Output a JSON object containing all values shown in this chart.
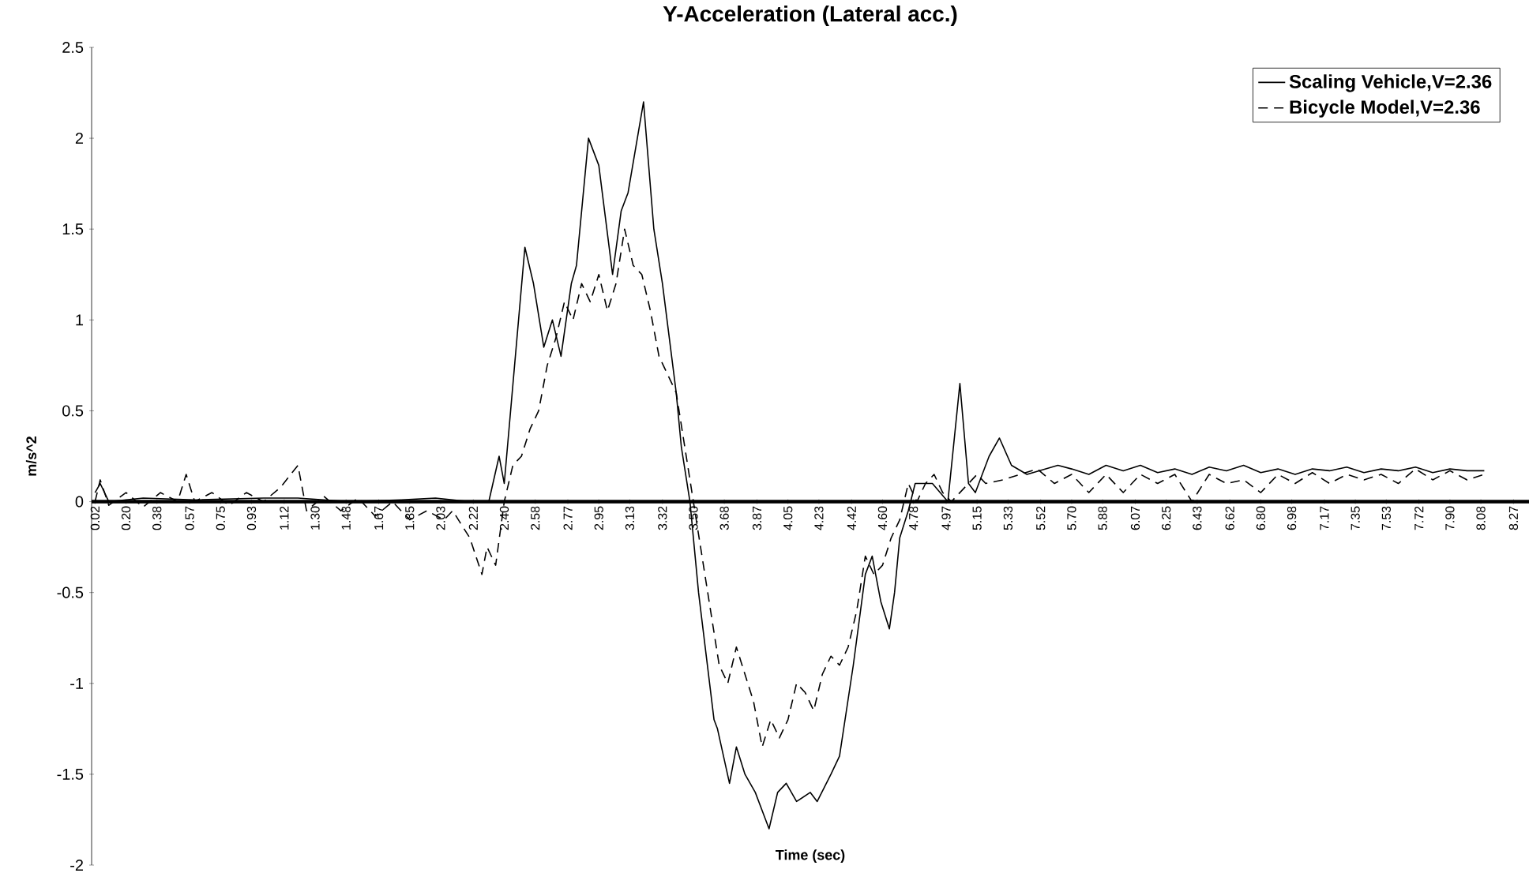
{
  "chart_data": {
    "type": "line",
    "title": "Y-Acceleration (Lateral acc.)",
    "xlabel": "Time (sec)",
    "ylabel": "m/s^2",
    "xlim": [
      0,
      8.36
    ],
    "ylim": [
      -2,
      2.5
    ],
    "yticks": [
      -2,
      -1.5,
      -1,
      -0.5,
      0,
      0.5,
      1,
      1.5,
      2,
      2.5
    ],
    "xticks": [
      {
        "value": 0.02,
        "label": "0.02"
      },
      {
        "value": 0.2,
        "label": "0.20"
      },
      {
        "value": 0.38,
        "label": "0.38"
      },
      {
        "value": 0.57,
        "label": "0.57"
      },
      {
        "value": 0.75,
        "label": "0.75"
      },
      {
        "value": 0.93,
        "label": "0.93"
      },
      {
        "value": 1.12,
        "label": "1.12"
      },
      {
        "value": 1.3,
        "label": "1.30"
      },
      {
        "value": 1.48,
        "label": "1.48"
      },
      {
        "value": 1.67,
        "label": "1.67"
      },
      {
        "value": 1.85,
        "label": "1.85"
      },
      {
        "value": 2.03,
        "label": "2.03"
      },
      {
        "value": 2.22,
        "label": "2.22"
      },
      {
        "value": 2.4,
        "label": "2.40"
      },
      {
        "value": 2.58,
        "label": "2.58"
      },
      {
        "value": 2.77,
        "label": "2.77"
      },
      {
        "value": 2.95,
        "label": "2.95"
      },
      {
        "value": 3.13,
        "label": "3.13"
      },
      {
        "value": 3.32,
        "label": "3.32"
      },
      {
        "value": 3.5,
        "label": "3.50"
      },
      {
        "value": 3.68,
        "label": "3.68"
      },
      {
        "value": 3.87,
        "label": "3.87"
      },
      {
        "value": 4.05,
        "label": "4.05"
      },
      {
        "value": 4.23,
        "label": "4.23"
      },
      {
        "value": 4.42,
        "label": "4.42"
      },
      {
        "value": 4.6,
        "label": "4.60"
      },
      {
        "value": 4.78,
        "label": "4.78"
      },
      {
        "value": 4.97,
        "label": "4.97"
      },
      {
        "value": 5.15,
        "label": "5.15"
      },
      {
        "value": 5.33,
        "label": "5.33"
      },
      {
        "value": 5.52,
        "label": "5.52"
      },
      {
        "value": 5.7,
        "label": "5.70"
      },
      {
        "value": 5.88,
        "label": "5.88"
      },
      {
        "value": 6.07,
        "label": "6.07"
      },
      {
        "value": 6.25,
        "label": "6.25"
      },
      {
        "value": 6.43,
        "label": "6.43"
      },
      {
        "value": 6.62,
        "label": "6.62"
      },
      {
        "value": 6.8,
        "label": "6.80"
      },
      {
        "value": 6.98,
        "label": "6.98"
      },
      {
        "value": 7.17,
        "label": "7.17"
      },
      {
        "value": 7.35,
        "label": "7.35"
      },
      {
        "value": 7.53,
        "label": "7.53"
      },
      {
        "value": 7.72,
        "label": "7.72"
      },
      {
        "value": 7.9,
        "label": "7.90"
      },
      {
        "value": 8.08,
        "label": "8.08"
      },
      {
        "value": 8.27,
        "label": "8.27"
      }
    ],
    "legend": "top right",
    "series": [
      {
        "name": "Scaling Vehicle,V=2.36",
        "color": "#000000",
        "line_style": "solid",
        "x": [
          0.02,
          0.05,
          0.1,
          0.3,
          0.6,
          1.0,
          1.2,
          1.5,
          1.8,
          2.0,
          2.2,
          2.31,
          2.37,
          2.4,
          2.52,
          2.57,
          2.63,
          2.68,
          2.73,
          2.79,
          2.82,
          2.86,
          2.89,
          2.95,
          3.03,
          3.08,
          3.12,
          3.21,
          3.27,
          3.32,
          3.4,
          3.43,
          3.48,
          3.53,
          3.62,
          3.64,
          3.71,
          3.75,
          3.8,
          3.86,
          3.94,
          3.99,
          4.04,
          4.1,
          4.18,
          4.22,
          4.3,
          4.35,
          4.43,
          4.5,
          4.54,
          4.59,
          4.64,
          4.67,
          4.7,
          4.75,
          4.79,
          4.89,
          4.98,
          5.05,
          5.1,
          5.14,
          5.22,
          5.28,
          5.35,
          5.44,
          5.62,
          5.7,
          5.8,
          5.9,
          6.0,
          6.1,
          6.2,
          6.3,
          6.4,
          6.5,
          6.6,
          6.7,
          6.8,
          6.9,
          7.0,
          7.1,
          7.2,
          7.3,
          7.4,
          7.5,
          7.6,
          7.7,
          7.8,
          7.9,
          8.0,
          8.1
        ],
        "values": [
          0.05,
          0.1,
          0.0,
          0.02,
          0.01,
          0.02,
          0.02,
          0.0,
          0.01,
          0.02,
          0.0,
          0.0,
          0.25,
          0.1,
          1.4,
          1.2,
          0.85,
          1.0,
          0.8,
          1.2,
          1.3,
          1.7,
          2.0,
          1.85,
          1.25,
          1.6,
          1.7,
          2.2,
          1.5,
          1.2,
          0.6,
          0.3,
          0.0,
          -0.5,
          -1.2,
          -1.25,
          -1.55,
          -1.35,
          -1.5,
          -1.6,
          -1.8,
          -1.6,
          -1.55,
          -1.65,
          -1.6,
          -1.65,
          -1.5,
          -1.4,
          -0.9,
          -0.4,
          -0.3,
          -0.55,
          -0.7,
          -0.5,
          -0.2,
          -0.05,
          0.1,
          0.1,
          0.0,
          0.65,
          0.1,
          0.05,
          0.25,
          0.35,
          0.2,
          0.15,
          0.2,
          0.18,
          0.15,
          0.2,
          0.17,
          0.2,
          0.16,
          0.18,
          0.15,
          0.19,
          0.17,
          0.2,
          0.16,
          0.18,
          0.15,
          0.18,
          0.17,
          0.19,
          0.16,
          0.18,
          0.17,
          0.19,
          0.16,
          0.18,
          0.17,
          0.17
        ]
      },
      {
        "name": "Bicycle Model,V=2.36",
        "color": "#000000",
        "line_style": "dashed",
        "x": [
          0.02,
          0.05,
          0.1,
          0.2,
          0.3,
          0.4,
          0.5,
          0.55,
          0.6,
          0.7,
          0.8,
          0.9,
          1.0,
          1.1,
          1.2,
          1.25,
          1.35,
          1.45,
          1.55,
          1.65,
          1.75,
          1.85,
          1.95,
          2.05,
          2.1,
          2.2,
          2.27,
          2.3,
          2.35,
          2.4,
          2.45,
          2.5,
          2.55,
          2.6,
          2.65,
          2.7,
          2.75,
          2.8,
          2.85,
          2.9,
          2.95,
          3.0,
          3.05,
          3.1,
          3.15,
          3.2,
          3.25,
          3.3,
          3.35,
          3.4,
          3.45,
          3.5,
          3.55,
          3.6,
          3.65,
          3.7,
          3.75,
          3.8,
          3.85,
          3.9,
          3.95,
          4.0,
          4.05,
          4.1,
          4.15,
          4.2,
          4.25,
          4.3,
          4.35,
          4.4,
          4.45,
          4.5,
          4.55,
          4.6,
          4.65,
          4.7,
          4.75,
          4.8,
          4.85,
          4.9,
          4.95,
          5.0,
          5.05,
          5.1,
          5.15,
          5.2,
          5.3,
          5.4,
          5.5,
          5.6,
          5.7,
          5.8,
          5.9,
          6.0,
          6.1,
          6.2,
          6.3,
          6.4,
          6.5,
          6.6,
          6.7,
          6.8,
          6.9,
          7.0,
          7.1,
          7.2,
          7.3,
          7.4,
          7.5,
          7.6,
          7.7,
          7.8,
          7.9,
          8.0,
          8.1
        ],
        "values": [
          0.0,
          0.12,
          -0.02,
          0.05,
          -0.03,
          0.05,
          0.0,
          0.15,
          0.0,
          0.05,
          -0.02,
          0.05,
          0.0,
          0.08,
          0.2,
          -0.05,
          0.03,
          -0.05,
          0.02,
          -0.08,
          0.0,
          -0.1,
          -0.05,
          -0.1,
          -0.05,
          -0.2,
          -0.4,
          -0.25,
          -0.35,
          0.0,
          0.2,
          0.25,
          0.4,
          0.5,
          0.75,
          0.9,
          1.1,
          1.0,
          1.2,
          1.1,
          1.25,
          1.05,
          1.2,
          1.5,
          1.3,
          1.25,
          1.05,
          0.8,
          0.7,
          0.6,
          0.3,
          0.0,
          -0.3,
          -0.6,
          -0.9,
          -1.0,
          -0.8,
          -0.95,
          -1.1,
          -1.35,
          -1.2,
          -1.3,
          -1.2,
          -1.0,
          -1.05,
          -1.15,
          -0.95,
          -0.85,
          -0.9,
          -0.8,
          -0.6,
          -0.3,
          -0.4,
          -0.35,
          -0.2,
          -0.1,
          0.1,
          0.0,
          0.1,
          0.15,
          0.05,
          0.0,
          0.05,
          0.1,
          0.15,
          0.1,
          0.12,
          0.15,
          0.18,
          0.1,
          0.15,
          0.05,
          0.15,
          0.05,
          0.15,
          0.1,
          0.15,
          0.0,
          0.15,
          0.1,
          0.12,
          0.05,
          0.15,
          0.1,
          0.16,
          0.1,
          0.15,
          0.12,
          0.15,
          0.1,
          0.18,
          0.12,
          0.17,
          0.12,
          0.15
        ]
      }
    ]
  }
}
